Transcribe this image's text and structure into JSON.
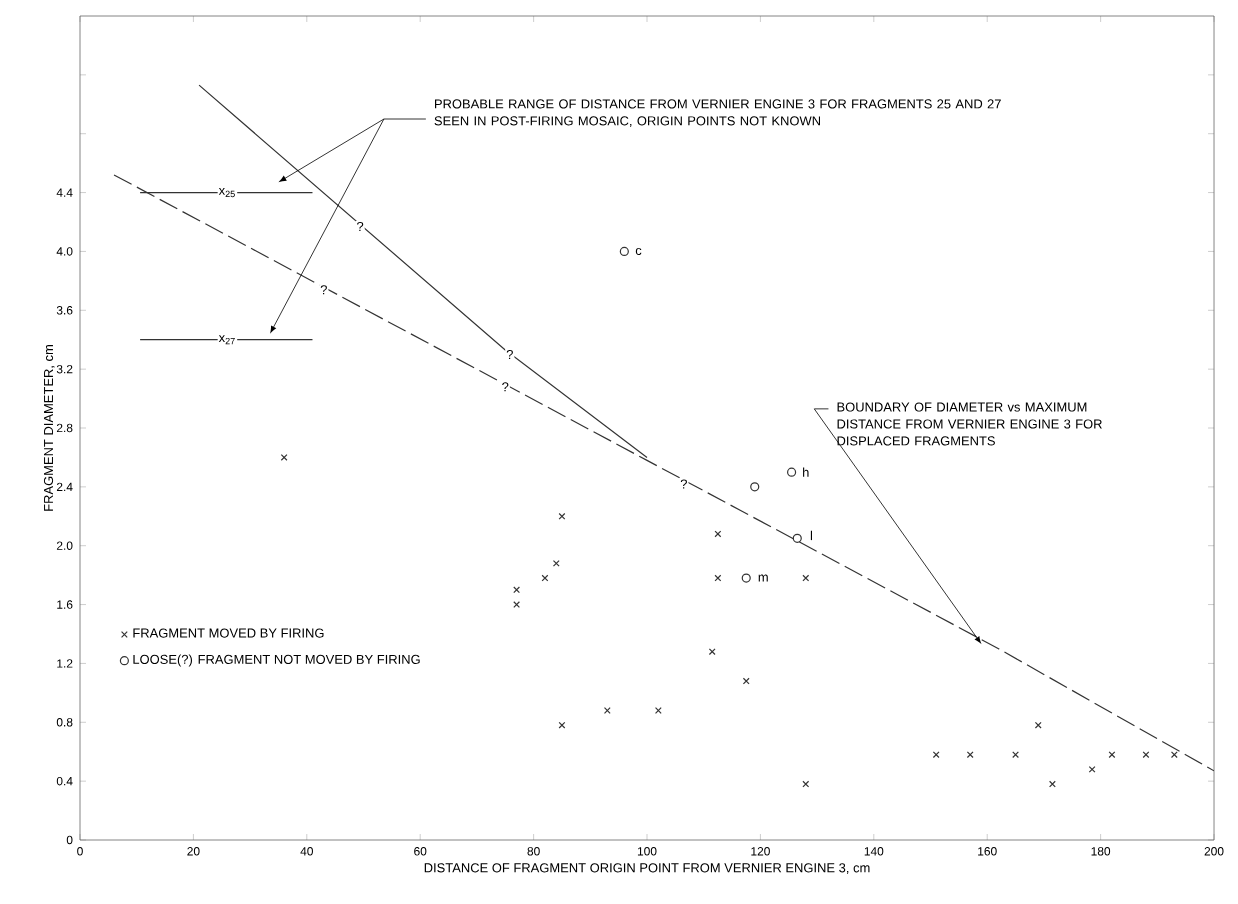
{
  "chart_data": {
    "type": "scatter",
    "xlabel": "DISTANCE OF FRAGMENT ORIGIN POINT FROM VERNIER ENGINE 3, cm",
    "ylabel": "FRAGMENT DIAMETER, cm",
    "xlim": [
      0,
      200
    ],
    "ylim": [
      0,
      5.6
    ],
    "xticks": [
      0,
      20,
      40,
      60,
      80,
      100,
      120,
      140,
      160,
      180,
      200
    ],
    "yticks": [
      0,
      0.4,
      0.8,
      1.2,
      1.6,
      {
        "value": 2,
        "label": "2.0"
      },
      2.4,
      2.8,
      3.2,
      3.6,
      {
        "value": 4,
        "label": "4.0"
      },
      4.4,
      {
        "value": 4.8,
        "label": null
      },
      {
        "value": 5.2,
        "label": null
      }
    ],
    "grid": false,
    "legend": "bottom left",
    "series": [
      {
        "name": "FRAGMENT MOVED BY FIRING",
        "color": "#333333",
        "marker": "cross",
        "x": [
          36,
          85,
          84,
          82,
          77,
          77,
          85,
          93,
          102,
          112.5,
          112.5,
          111.5,
          117.5,
          128,
          128,
          151,
          157,
          165,
          169,
          171.5,
          178.5,
          182,
          188,
          193
        ],
        "values": [
          2.6,
          2.2,
          1.88,
          1.78,
          1.7,
          1.6,
          0.78,
          0.88,
          0.88,
          2.08,
          1.78,
          1.28,
          1.08,
          1.78,
          0.38,
          0.58,
          0.58,
          0.58,
          0.78,
          0.38,
          0.48,
          0.58,
          0.58,
          0.58
        ]
      },
      {
        "name": "LOOSE(?) FRAGMENT NOT MOVED BY FIRING",
        "color": "#333333",
        "marker": "circle",
        "x": [
          96,
          119,
          125.5,
          126.5,
          117.5
        ],
        "values": [
          4.0,
          2.4,
          2.5,
          2.05,
          1.78
        ]
      },
      {
        "type": "line",
        "color": "#333333",
        "marker": "none",
        "line_style": "solid",
        "x": [
          21,
          75,
          100
        ],
        "values": [
          5.13,
          3.33,
          2.6
        ]
      },
      {
        "type": "line",
        "color": "#333333",
        "marker": "none",
        "line_style": "dashed",
        "x": [
          6,
          100,
          162,
          200
        ],
        "values": [
          4.52,
          2.58,
          1.3,
          0.47
        ]
      },
      {
        "type": "line",
        "color": "#333333",
        "marker": "none",
        "line_style": "solid",
        "x": [
          10.6,
          41
        ],
        "values": [
          4.4,
          4.4
        ]
      },
      {
        "type": "line",
        "color": "#333333",
        "marker": "none",
        "line_style": "solid",
        "x": [
          10.6,
          41
        ],
        "values": [
          3.4,
          3.4
        ]
      }
    ],
    "annotations": [
      "PROBABLE RANGE OF DISTANCE FROM VERNIER ENGINE 3 FOR FRAGMENTS 25 AND 27 SEEN IN POST-FIRING MOSAIC, ORIGIN POINTS NOT KNOWN",
      {
        "text": "x$_{25}$",
        "x": 26,
        "y": 4.4
      },
      {
        "text": "x$_{27}$",
        "x": 26,
        "y": 3.4
      },
      {
        "text": "BOUNDARY OF DIAMETER vs MAXIMUM DISTANCE FROM VERNIER ENGINE 3 FOR DISPLACED FRAGMENTS",
        "x": 159,
        "y": 1.33
      },
      {
        "text": "?",
        "x": 49.4,
        "y": 4.17
      },
      {
        "text": "?",
        "x": 43,
        "y": 3.74
      },
      {
        "text": "?",
        "x": 75.8,
        "y": 3.3
      },
      {
        "text": "?",
        "x": 75,
        "y": 3.08
      },
      {
        "text": "?",
        "x": 106.5,
        "y": 2.42
      },
      {
        "text": "c",
        "x": 98.5,
        "y": 4.0
      },
      {
        "text": "h",
        "x": 128,
        "y": 2.5
      },
      {
        "text": "l",
        "x": 129,
        "y": 2.07
      },
      {
        "text": "m",
        "x": 120.5,
        "y": 1.78
      }
    ]
  }
}
